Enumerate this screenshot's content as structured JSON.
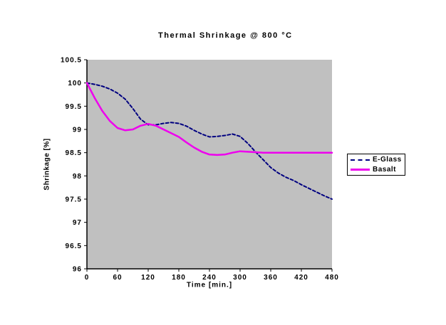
{
  "background_color": "#ffffff",
  "chart_data": {
    "type": "line",
    "title": "Thermal Shrinkage @ 800 °C",
    "xlabel": "Time [min.]",
    "ylabel": "Shrinkage [%]",
    "xlim": [
      0,
      480
    ],
    "ylim": [
      96,
      100.5
    ],
    "xticks": [
      0,
      60,
      120,
      180,
      240,
      300,
      360,
      420,
      480
    ],
    "yticks": [
      96,
      96.5,
      97,
      97.5,
      98,
      98.5,
      99,
      99.5,
      100,
      100.5
    ],
    "grid": false,
    "plot_bg": "#c0c0c0",
    "axis_color": "#000000",
    "legend_position": "right-outside",
    "series": [
      {
        "name": "E-Glass",
        "color": "#000080",
        "style": "dashed",
        "x": [
          0,
          15,
          30,
          45,
          60,
          75,
          90,
          105,
          120,
          135,
          150,
          165,
          180,
          195,
          210,
          225,
          240,
          255,
          270,
          285,
          300,
          315,
          330,
          345,
          360,
          375,
          390,
          405,
          420,
          435,
          450,
          465,
          480
        ],
        "y": [
          100.0,
          99.97,
          99.93,
          99.87,
          99.78,
          99.65,
          99.45,
          99.22,
          99.1,
          99.1,
          99.13,
          99.15,
          99.13,
          99.07,
          98.98,
          98.9,
          98.84,
          98.85,
          98.87,
          98.9,
          98.85,
          98.7,
          98.52,
          98.35,
          98.18,
          98.06,
          97.97,
          97.9,
          97.81,
          97.73,
          97.65,
          97.57,
          97.5
        ]
      },
      {
        "name": "Basalt",
        "color": "#ee00ee",
        "style": "solid",
        "x": [
          0,
          15,
          30,
          45,
          60,
          75,
          90,
          105,
          120,
          135,
          150,
          165,
          180,
          195,
          210,
          225,
          240,
          255,
          270,
          285,
          300,
          315,
          330,
          345,
          360,
          375,
          390,
          405,
          420,
          435,
          450,
          465,
          480
        ],
        "y": [
          100.0,
          99.68,
          99.4,
          99.18,
          99.03,
          98.98,
          99.0,
          99.08,
          99.12,
          99.08,
          99.0,
          98.92,
          98.84,
          98.72,
          98.61,
          98.52,
          98.46,
          98.45,
          98.46,
          98.5,
          98.53,
          98.52,
          98.51,
          98.5,
          98.5,
          98.5,
          98.5,
          98.5,
          98.5,
          98.5,
          98.5,
          98.5,
          98.5
        ]
      }
    ]
  }
}
